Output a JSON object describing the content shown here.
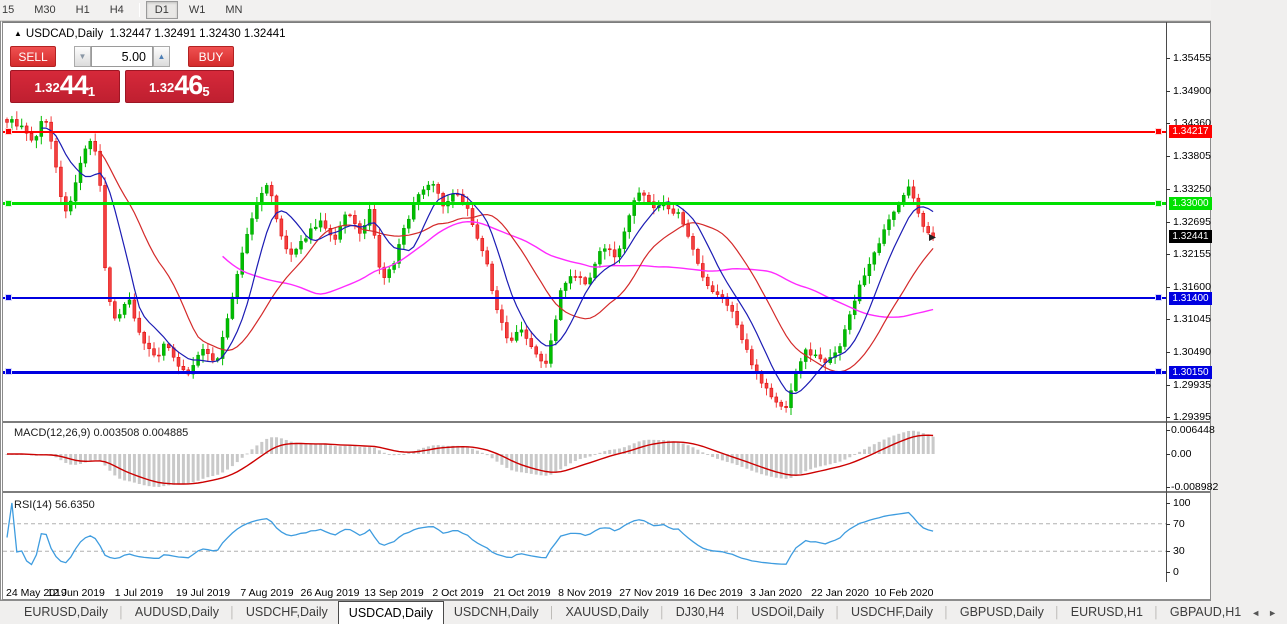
{
  "toolbar": {
    "timeframes": [
      "15",
      "M30",
      "H1",
      "H4",
      "D1",
      "W1",
      "MN"
    ],
    "active": "D1",
    "separator_after": "H4"
  },
  "chart": {
    "title": {
      "collapse_icon": "triangle-up",
      "symbol": "USDCAD,Daily",
      "ohlc_text": "1.32447 1.32491 1.32430 1.32441"
    },
    "trade_panel": {
      "sell_label": "SELL",
      "buy_label": "BUY",
      "lot_value": "5.00",
      "spin_down_icon": "▼",
      "spin_up_icon": "▲",
      "sell_price": {
        "small": "1.32",
        "big": "44",
        "sup": "1"
      },
      "buy_price": {
        "small": "1.32",
        "big": "46",
        "sup": "5"
      }
    }
  },
  "chart_data": {
    "type": "candlestick",
    "symbol": "USDCAD",
    "timeframe": "Daily",
    "title_ohlc": {
      "open": 1.32447,
      "high": 1.32491,
      "low": 1.3243,
      "close": 1.32441
    },
    "current_price": 1.32441,
    "candle_count": 190,
    "colors": {
      "up": "#00BE00",
      "up_stroke": "#009c00",
      "down": "#F24040",
      "down_stroke": "#e00000",
      "ma_fast": "#1C1CB4",
      "ma_mid": "#D42A2A",
      "ma_slow": "#FF2BFF",
      "macd_bar": "#c9c9c9",
      "macd_signal": "#cc0000",
      "rsi_line": "#3E9CDF",
      "rsi_level": "#b0b0b0",
      "tag_current_bg": "#000000"
    },
    "y_axis_ticks": [
      "1.35455",
      "1.34900",
      "1.34360",
      "1.33805",
      "1.33250",
      "1.32695",
      "1.32155",
      "1.31600",
      "1.31045",
      "1.30490",
      "1.29935",
      "1.29395"
    ],
    "x_labels": [
      "24 May 2019",
      "12 Jun 2019",
      "1 Jul 2019",
      "19 Jul 2019",
      "7 Aug 2019",
      "26 Aug 2019",
      "13 Sep 2019",
      "2 Oct 2019",
      "21 Oct 2019",
      "8 Nov 2019",
      "27 Nov 2019",
      "16 Dec 2019",
      "3 Jan 2020",
      "22 Jan 2020",
      "10 Feb 2020"
    ],
    "horizontal_lines": [
      {
        "value": 1.34217,
        "label": "1.34217",
        "color": "#FF0000",
        "thickness": 2
      },
      {
        "value": 1.33,
        "label": "1.33000",
        "color": "#00E000",
        "thickness": 3
      },
      {
        "value": 1.314,
        "label": "1.31400",
        "color": "#0000E0",
        "thickness": 2
      },
      {
        "value": 1.3015,
        "label": "1.30150",
        "color": "#0000E0",
        "thickness": 3
      }
    ],
    "current_price_label": "1.32441",
    "moving_averages": [
      {
        "name": "fast",
        "period": 8
      },
      {
        "name": "mid",
        "period": 20
      },
      {
        "name": "slow",
        "period": 45
      }
    ],
    "indicators": {
      "macd": {
        "label": "MACD(12,26,9)",
        "values_text": "0.003508 0.004885",
        "macd_value": 0.003508,
        "signal_value": 0.004885,
        "params": [
          12,
          26,
          9
        ],
        "y_ticks": [
          "0.006448",
          "0.00",
          "-0.008982"
        ],
        "y_tick_values": [
          0.006448,
          0,
          -0.008982
        ]
      },
      "rsi": {
        "label": "RSI(14)",
        "value_text": "56.6350",
        "value": 56.635,
        "period": 14,
        "y_ticks": [
          "100",
          "70",
          "30",
          "0"
        ],
        "y_tick_values": [
          100,
          70,
          30,
          0
        ],
        "levels": [
          70,
          30
        ]
      }
    },
    "price_path_anchors": [
      [
        8,
        1.344
      ],
      [
        18,
        1.343
      ],
      [
        30,
        1.3402
      ],
      [
        42,
        1.345
      ],
      [
        50,
        1.339
      ],
      [
        58,
        1.331
      ],
      [
        65,
        1.328
      ],
      [
        74,
        1.3348
      ],
      [
        82,
        1.339
      ],
      [
        90,
        1.3415
      ],
      [
        97,
        1.333
      ],
      [
        103,
        1.316
      ],
      [
        112,
        1.3102
      ],
      [
        120,
        1.3125
      ],
      [
        127,
        1.314
      ],
      [
        136,
        1.308
      ],
      [
        146,
        1.3055
      ],
      [
        153,
        1.304
      ],
      [
        162,
        1.3063
      ],
      [
        170,
        1.3045
      ],
      [
        178,
        1.3022
      ],
      [
        187,
        1.3012
      ],
      [
        198,
        1.3058
      ],
      [
        206,
        1.304
      ],
      [
        213,
        1.303
      ],
      [
        222,
        1.309
      ],
      [
        232,
        1.316
      ],
      [
        241,
        1.323
      ],
      [
        250,
        1.328
      ],
      [
        258,
        1.3315
      ],
      [
        265,
        1.3338
      ],
      [
        271,
        1.329
      ],
      [
        277,
        1.325
      ],
      [
        284,
        1.322
      ],
      [
        290,
        1.321
      ],
      [
        297,
        1.323
      ],
      [
        304,
        1.3248
      ],
      [
        311,
        1.3262
      ],
      [
        318,
        1.327
      ],
      [
        325,
        1.325
      ],
      [
        331,
        1.3232
      ],
      [
        338,
        1.3262
      ],
      [
        345,
        1.329
      ],
      [
        351,
        1.3268
      ],
      [
        357,
        1.3245
      ],
      [
        362,
        1.3268
      ],
      [
        367,
        1.3288
      ],
      [
        372,
        1.324
      ],
      [
        378,
        1.3172
      ],
      [
        384,
        1.318
      ],
      [
        391,
        1.32
      ],
      [
        397,
        1.3235
      ],
      [
        403,
        1.3266
      ],
      [
        410,
        1.3295
      ],
      [
        417,
        1.332
      ],
      [
        424,
        1.333
      ],
      [
        431,
        1.3335
      ],
      [
        437,
        1.331
      ],
      [
        442,
        1.3292
      ],
      [
        448,
        1.331
      ],
      [
        453,
        1.3322
      ],
      [
        459,
        1.33
      ],
      [
        465,
        1.3288
      ],
      [
        471,
        1.3262
      ],
      [
        477,
        1.323
      ],
      [
        484,
        1.3198
      ],
      [
        491,
        1.314
      ],
      [
        498,
        1.31
      ],
      [
        505,
        1.3066
      ],
      [
        512,
        1.308
      ],
      [
        518,
        1.3092
      ],
      [
        525,
        1.307
      ],
      [
        531,
        1.3055
      ],
      [
        537,
        1.3038
      ],
      [
        543,
        1.3032
      ],
      [
        550,
        1.308
      ],
      [
        557,
        1.3148
      ],
      [
        564,
        1.3168
      ],
      [
        571,
        1.318
      ],
      [
        578,
        1.317
      ],
      [
        585,
        1.316
      ],
      [
        592,
        1.3195
      ],
      [
        599,
        1.323
      ],
      [
        606,
        1.322
      ],
      [
        612,
        1.3205
      ],
      [
        619,
        1.324
      ],
      [
        626,
        1.328
      ],
      [
        632,
        1.3305
      ],
      [
        638,
        1.3325
      ],
      [
        644,
        1.3305
      ],
      [
        650,
        1.329
      ],
      [
        656,
        1.3296
      ],
      [
        662,
        1.33
      ],
      [
        669,
        1.329
      ],
      [
        676,
        1.328
      ],
      [
        683,
        1.325
      ],
      [
        690,
        1.322
      ],
      [
        697,
        1.3185
      ],
      [
        703,
        1.316
      ],
      [
        710,
        1.3152
      ],
      [
        716,
        1.3145
      ],
      [
        722,
        1.3135
      ],
      [
        728,
        1.3125
      ],
      [
        734,
        1.3095
      ],
      [
        740,
        1.3065
      ],
      [
        746,
        1.3042
      ],
      [
        752,
        1.302
      ],
      [
        757,
        1.3005
      ],
      [
        762,
        1.299
      ],
      [
        767,
        1.2978
      ],
      [
        772,
        1.2965
      ],
      [
        777,
        1.2958
      ],
      [
        782,
        1.2952
      ],
      [
        787,
        1.298
      ],
      [
        792,
        1.301
      ],
      [
        797,
        1.3032
      ],
      [
        802,
        1.305
      ],
      [
        807,
        1.3048
      ],
      [
        812,
        1.3045
      ],
      [
        816,
        1.3038
      ],
      [
        820,
        1.3032
      ],
      [
        825,
        1.304
      ],
      [
        830,
        1.3048
      ],
      [
        834,
        1.3054
      ],
      [
        838,
        1.306
      ],
      [
        843,
        1.309
      ],
      [
        848,
        1.312
      ],
      [
        853,
        1.3145
      ],
      [
        858,
        1.317
      ],
      [
        863,
        1.3185
      ],
      [
        868,
        1.32
      ],
      [
        873,
        1.322
      ],
      [
        878,
        1.324
      ],
      [
        883,
        1.326
      ],
      [
        888,
        1.328
      ],
      [
        893,
        1.3296
      ],
      [
        898,
        1.331
      ],
      [
        902,
        1.332
      ],
      [
        906,
        1.3328
      ],
      [
        909,
        1.3315
      ],
      [
        912,
        1.33
      ],
      [
        915,
        1.3285
      ],
      [
        918,
        1.327
      ],
      [
        921,
        1.326
      ],
      [
        924,
        1.3252
      ],
      [
        927,
        1.3246
      ],
      [
        930,
        1.3244
      ]
    ]
  },
  "tabs": {
    "items": [
      "EURUSD,Daily",
      "AUDUSD,Daily",
      "USDCHF,Daily",
      "USDCAD,Daily",
      "USDCNH,Daily",
      "XAUUSD,Daily",
      "DJ30,H4",
      "USDOil,Daily",
      "USDCHF,Daily",
      "GBPUSD,Daily",
      "EURUSD,H1",
      "GBPAUD,H1"
    ],
    "active_index": 3,
    "scroll_left_icon": "◄",
    "scroll_right_icon": "►"
  }
}
